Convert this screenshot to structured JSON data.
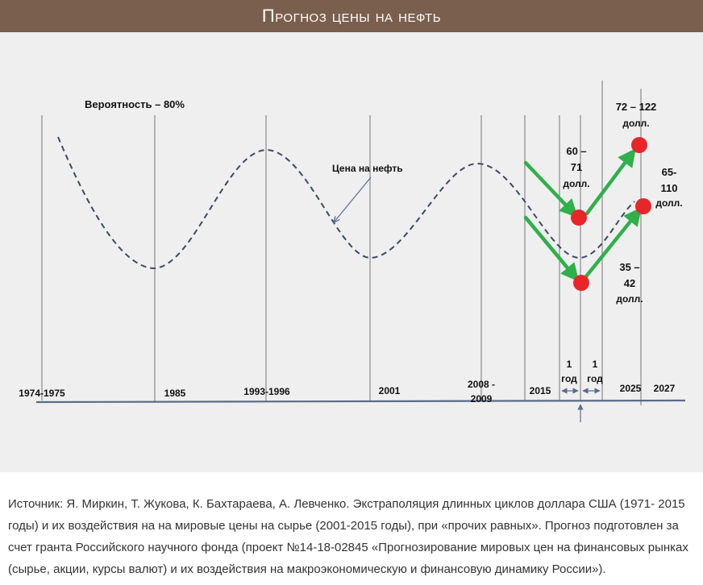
{
  "title": "Прогноз цены на нефть",
  "probability_label": "Вероятность – 80%",
  "curve_label": "Цена на нефть",
  "timeline": {
    "labels": [
      "1974-1975",
      "1985",
      "1993-1996",
      "2001",
      "2008 -",
      "2009",
      "2015",
      "2025",
      "2027"
    ],
    "interval_1": [
      "1",
      "год"
    ],
    "interval_2": [
      "1",
      "год"
    ]
  },
  "forecasts": {
    "current_high": [
      "60 –",
      "71",
      "долл."
    ],
    "current_low": [
      "35 –",
      "42",
      "долл."
    ],
    "future_high": [
      "72 – 122",
      "долл."
    ],
    "future_low": [
      "65-",
      "110",
      "долл."
    ]
  },
  "colors": {
    "header": "#7a5f4e",
    "panel": "#efefef",
    "arrow": "#2fb04a",
    "point": "#e8262a",
    "curve": "#3d4a66"
  },
  "source_text": "Источник: Я. Миркин, Т. Жукова, К. Бахтараева, А. Левченко. Экстраполяция длинных циклов доллара США (1971- 2015 годы) и их воздействия на на мировые цены на сырье (2001-2015 годы), при «прочих равных». Прогноз подготовлен за счет гранта Российского научного фонда (проект №14-18-02845 «Прогнозирование мировых цен на финансовых рынках (сырье, акции, курсы валют) и их воздействия на макроэкономическую и финансовую динамику России»)."
}
